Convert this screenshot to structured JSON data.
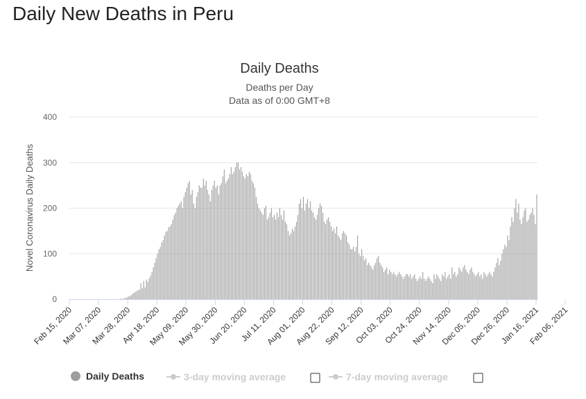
{
  "page": {
    "heading": "Daily New Deaths in Peru"
  },
  "colors": {
    "bar": "#9e9e9e",
    "grid": "#e6e6e6",
    "axis": "#ccd6eb",
    "legend_active": "#333333",
    "legend_inactive": "#cccccc"
  },
  "legend": {
    "items": [
      {
        "label": "Daily Deaths",
        "active": true,
        "symbol": "circle",
        "has_checkbox": false
      },
      {
        "label": "3-day moving average",
        "active": false,
        "symbol": "line-dot",
        "has_checkbox": true
      },
      {
        "label": "7-day moving average",
        "active": false,
        "symbol": "line-dot",
        "has_checkbox": true
      }
    ]
  },
  "chart_data": {
    "type": "bar",
    "title": "Daily Deaths",
    "subtitle_lines": [
      "Deaths per Day",
      "Data as of 0:00 GMT+8"
    ],
    "xlabel": "",
    "ylabel": "Novel Coronavirus Daily Deaths",
    "ylim": [
      0,
      400
    ],
    "yticks": [
      0,
      100,
      200,
      300,
      400
    ],
    "x_start": "Feb 15, 2020",
    "x_end": "Feb 14, 2021",
    "xtick_labels": [
      "Feb 15, 2020",
      "Mar 07, 2020",
      "Mar 28, 2020",
      "Apr 18, 2020",
      "May 09, 2020",
      "May 30, 2020",
      "Jun 20, 2020",
      "Jul 11, 2020",
      "Aug 01, 2020",
      "Aug 22, 2020",
      "Sep 12, 2020",
      "Oct 03, 2020",
      "Oct 24, 2020",
      "Nov 14, 2020",
      "Dec 05, 2020",
      "Dec 26, 2020",
      "Jan 16, 2021",
      "Feb 06, 2021"
    ],
    "grid": true,
    "series": [
      {
        "name": "Daily Deaths",
        "values": [
          0,
          0,
          0,
          0,
          0,
          0,
          0,
          0,
          0,
          0,
          0,
          0,
          0,
          0,
          0,
          0,
          0,
          0,
          0,
          0,
          0,
          0,
          0,
          0,
          0,
          0,
          0,
          0,
          0,
          0,
          0,
          0,
          0,
          0,
          0,
          0,
          1,
          1,
          1,
          2,
          3,
          4,
          6,
          7,
          9,
          12,
          14,
          16,
          18,
          20,
          21,
          35,
          24,
          40,
          26,
          43,
          38,
          46,
          52,
          60,
          70,
          80,
          90,
          100,
          110,
          115,
          125,
          130,
          140,
          148,
          150,
          158,
          160,
          165,
          175,
          185,
          190,
          200,
          205,
          210,
          215,
          200,
          225,
          235,
          245,
          255,
          260,
          230,
          240,
          210,
          200,
          225,
          235,
          250,
          245,
          245,
          265,
          250,
          260,
          240,
          230,
          215,
          240,
          250,
          260,
          245,
          250,
          230,
          250,
          255,
          270,
          285,
          255,
          260,
          265,
          275,
          290,
          275,
          280,
          290,
          300,
          300,
          285,
          290,
          280,
          270,
          265,
          275,
          270,
          280,
          275,
          260,
          255,
          245,
          225,
          210,
          200,
          195,
          190,
          185,
          200,
          205,
          175,
          180,
          190,
          200,
          180,
          185,
          175,
          190,
          180,
          200,
          185,
          175,
          195,
          170,
          165,
          150,
          140,
          145,
          155,
          150,
          160,
          170,
          185,
          210,
          220,
          200,
          225,
          195,
          210,
          220,
          200,
          215,
          195,
          190,
          180,
          175,
          185,
          200,
          210,
          205,
          190,
          170,
          165,
          175,
          180,
          170,
          160,
          150,
          155,
          145,
          160,
          140,
          135,
          130,
          145,
          150,
          145,
          140,
          125,
          120,
          110,
          110,
          115,
          105,
          115,
          140,
          100,
          95,
          110,
          95,
          85,
          90,
          75,
          80,
          75,
          70,
          65,
          75,
          80,
          90,
          95,
          80,
          75,
          70,
          60,
          65,
          70,
          55,
          65,
          60,
          55,
          60,
          55,
          50,
          55,
          60,
          55,
          50,
          45,
          50,
          55,
          55,
          50,
          55,
          45,
          50,
          55,
          45,
          40,
          45,
          50,
          45,
          60,
          45,
          40,
          45,
          50,
          45,
          40,
          35,
          55,
          45,
          55,
          50,
          45,
          40,
          55,
          50,
          60,
          45,
          50,
          55,
          45,
          70,
          55,
          60,
          50,
          55,
          70,
          65,
          60,
          70,
          75,
          65,
          60,
          55,
          65,
          70,
          60,
          55,
          50,
          55,
          60,
          50,
          55,
          45,
          60,
          55,
          50,
          55,
          60,
          55,
          50,
          60,
          70,
          80,
          90,
          75,
          85,
          100,
          110,
          120,
          115,
          140,
          130,
          160,
          180,
          170,
          200,
          220,
          190,
          210,
          175,
          165,
          180,
          195,
          200,
          170,
          175,
          185,
          190,
          200,
          185,
          165,
          230
        ]
      }
    ]
  }
}
